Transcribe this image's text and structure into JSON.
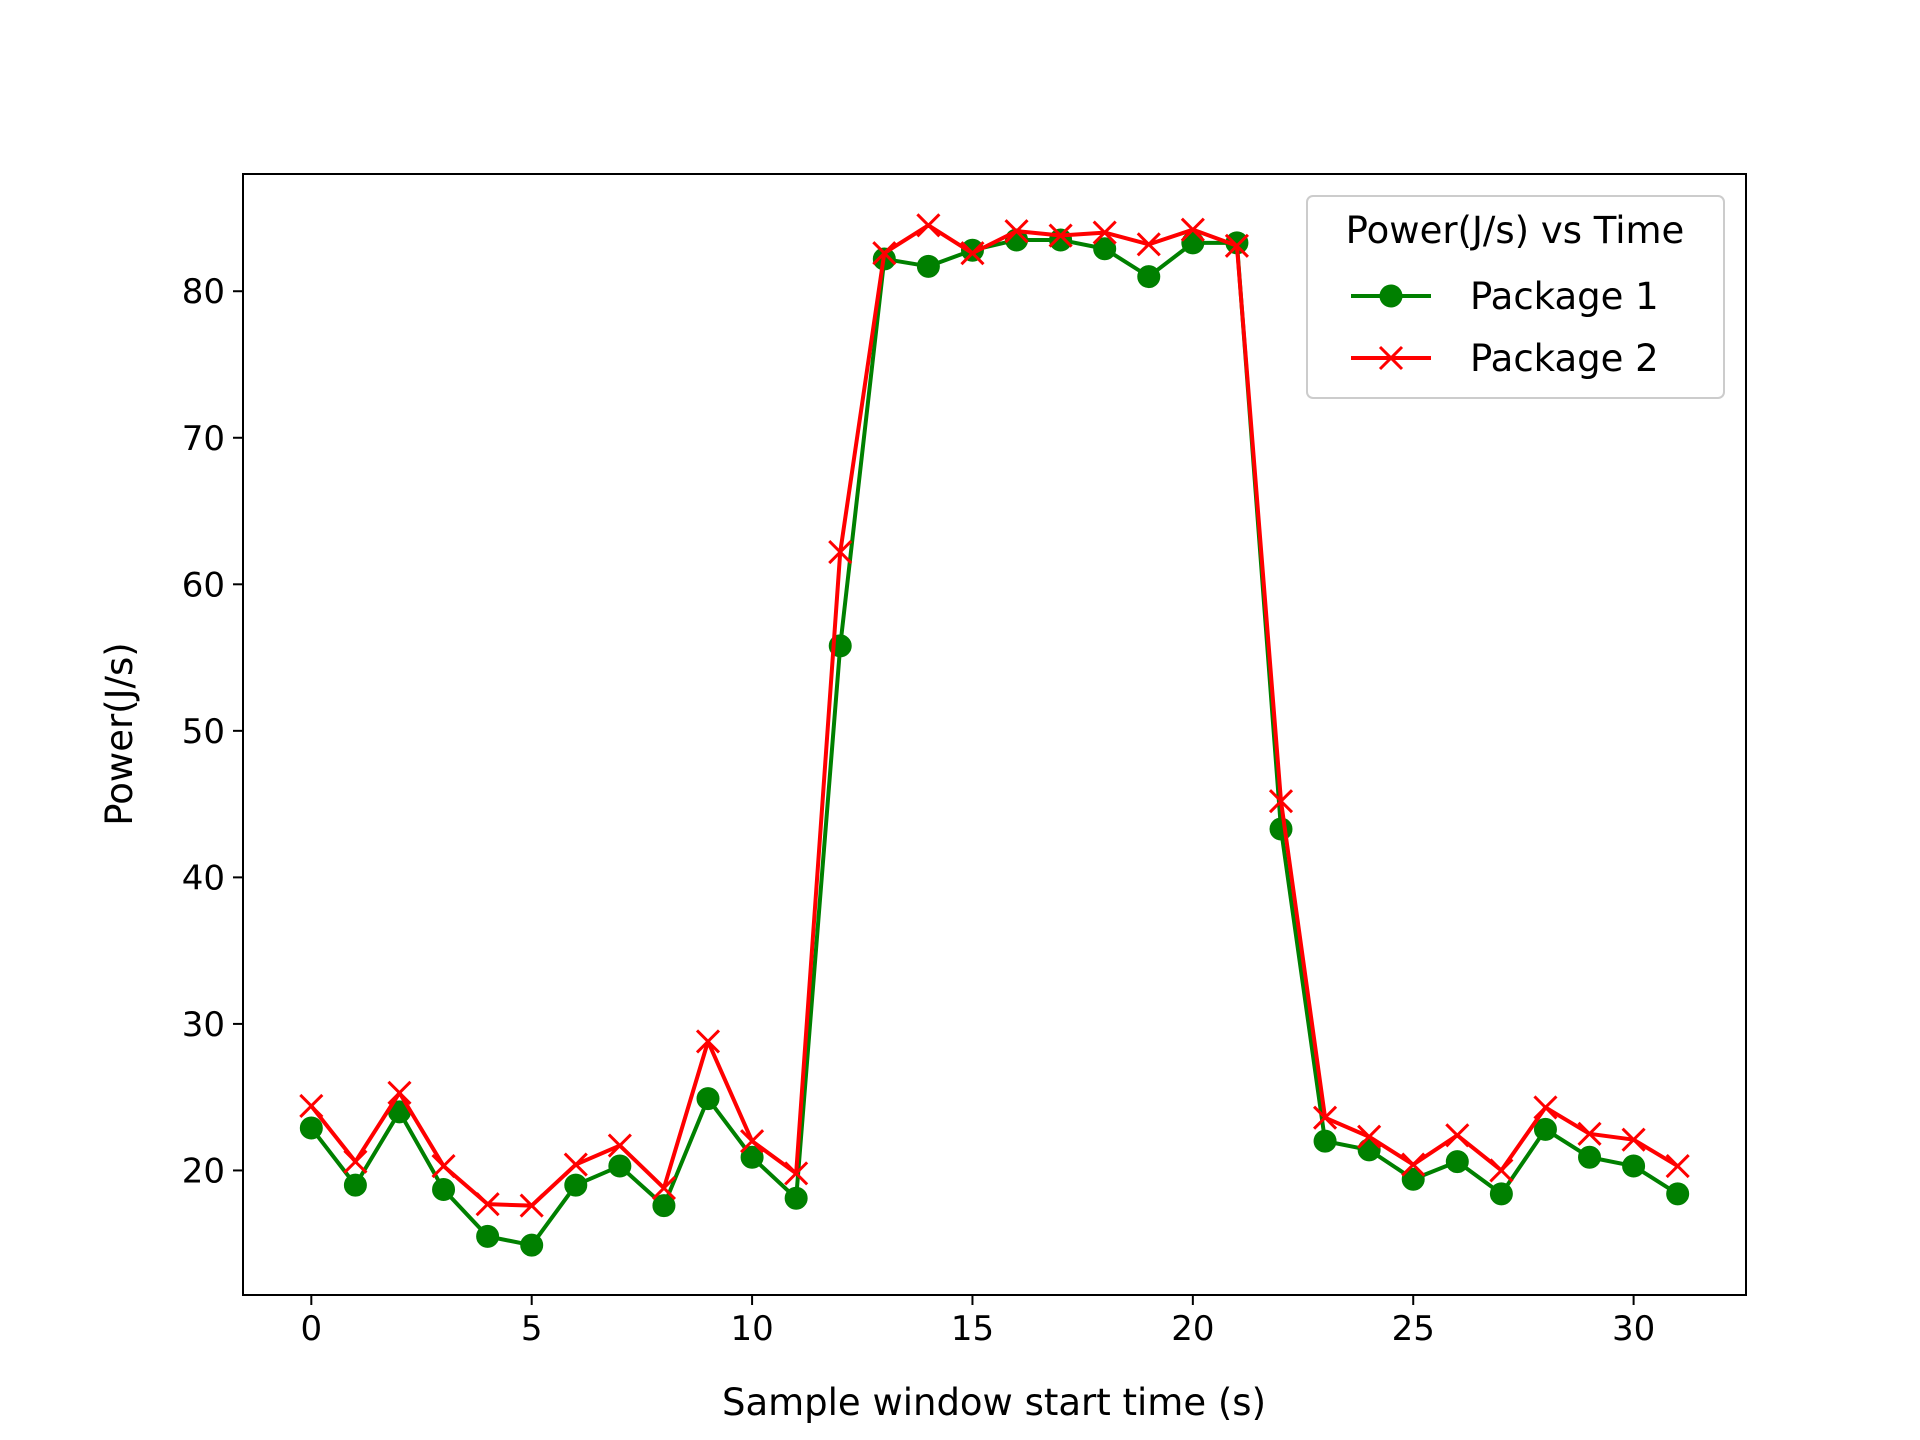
{
  "chart_data": {
    "type": "line",
    "xlabel": "Sample window start time (s)",
    "ylabel": "Power(J/s)",
    "xlim": [
      -1.55,
      32.55
    ],
    "ylim": [
      11.5,
      88.0
    ],
    "xticks": [
      0,
      5,
      10,
      15,
      20,
      25,
      30
    ],
    "yticks": [
      20,
      30,
      40,
      50,
      60,
      70,
      80
    ],
    "grid": false,
    "legend": {
      "title": "Power(J/s) vs Time",
      "placement": "upper-right"
    },
    "x": [
      0,
      1,
      2,
      3,
      4,
      5,
      6,
      7,
      8,
      9,
      10,
      11,
      12,
      13,
      14,
      15,
      16,
      17,
      18,
      19,
      20,
      21,
      22,
      23,
      24,
      25,
      26,
      27,
      28,
      29,
      30,
      31
    ],
    "series": [
      {
        "name": "Package 1",
        "color": "#008000",
        "marker": "circle",
        "values": [
          22.9,
          19.0,
          24.0,
          18.7,
          15.5,
          14.9,
          19.0,
          20.3,
          17.6,
          24.9,
          20.9,
          18.1,
          55.8,
          82.2,
          81.7,
          82.8,
          83.5,
          83.5,
          82.9,
          81.0,
          83.3,
          83.3,
          43.3,
          22.0,
          21.4,
          19.4,
          20.6,
          18.4,
          22.8,
          20.9,
          20.3,
          18.4
        ]
      },
      {
        "name": "Package 2",
        "color": "#ff0000",
        "marker": "x",
        "values": [
          24.4,
          20.6,
          25.3,
          20.3,
          17.7,
          17.6,
          20.4,
          21.7,
          18.8,
          28.8,
          22.0,
          19.8,
          62.2,
          82.6,
          84.5,
          82.6,
          84.1,
          83.8,
          84.0,
          83.2,
          84.2,
          83.1,
          45.2,
          23.6,
          22.3,
          20.4,
          22.4,
          20.0,
          24.3,
          22.5,
          22.1,
          20.3
        ]
      }
    ]
  }
}
